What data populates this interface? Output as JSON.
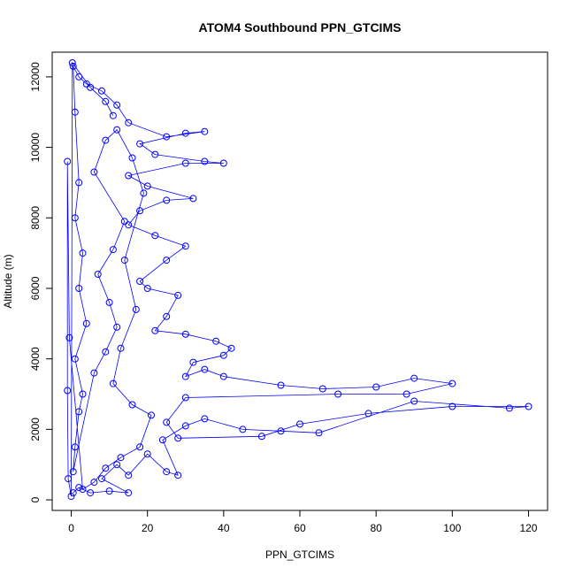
{
  "chart_data": {
    "type": "scatter",
    "title": "ATOM4 Southbound PPN_GTCIMS",
    "xlabel": "PPN_GTCIMS",
    "ylabel": "Altitude (m)",
    "xlim": [
      -5,
      125
    ],
    "ylim": [
      -300,
      12700
    ],
    "x_ticks": [
      0,
      20,
      40,
      60,
      80,
      100,
      120
    ],
    "y_ticks": [
      0,
      2000,
      4000,
      6000,
      8000,
      10000,
      12000
    ],
    "grid": false,
    "legend": "none",
    "point_style": "open-circle-with-connecting-lines",
    "series": [
      {
        "color": "#0000ff",
        "points": [
          [
            0.5,
            200
          ],
          [
            2,
            350
          ],
          [
            5,
            200
          ],
          [
            10,
            250
          ],
          [
            15,
            200
          ],
          [
            8,
            600
          ],
          [
            12,
            1000
          ],
          [
            15,
            700
          ],
          [
            20,
            1300
          ],
          [
            25,
            800
          ],
          [
            28,
            700
          ],
          [
            24,
            1700
          ],
          [
            30,
            2100
          ],
          [
            35,
            2300
          ],
          [
            45,
            2000
          ],
          [
            55,
            1950
          ],
          [
            65,
            1900
          ],
          [
            90,
            2800
          ],
          [
            115,
            2600
          ],
          [
            120,
            2650
          ],
          [
            100,
            2650
          ],
          [
            78,
            2450
          ],
          [
            60,
            2150
          ],
          [
            50,
            1800
          ],
          [
            28,
            1750
          ],
          [
            25,
            2200
          ],
          [
            30,
            2900
          ],
          [
            70,
            3000
          ],
          [
            88,
            3000
          ],
          [
            100,
            3300
          ],
          [
            90,
            3450
          ],
          [
            80,
            3200
          ],
          [
            66,
            3150
          ],
          [
            55,
            3250
          ],
          [
            40,
            3500
          ],
          [
            35,
            3700
          ],
          [
            30,
            3500
          ],
          [
            32,
            3900
          ],
          [
            40,
            4100
          ],
          [
            42,
            4300
          ],
          [
            38,
            4500
          ],
          [
            30,
            4700
          ],
          [
            22,
            4800
          ],
          [
            25,
            5200
          ],
          [
            28,
            5800
          ],
          [
            20,
            6000
          ],
          [
            18,
            6200
          ],
          [
            25,
            6800
          ],
          [
            30,
            7200
          ],
          [
            22,
            7500
          ],
          [
            15,
            7800
          ],
          [
            18,
            8200
          ],
          [
            25,
            8500
          ],
          [
            32,
            8550
          ],
          [
            20,
            8900
          ],
          [
            15,
            9200
          ],
          [
            30,
            9550
          ],
          [
            40,
            9550
          ],
          [
            35,
            9600
          ],
          [
            22,
            9800
          ],
          [
            18,
            10100
          ],
          [
            30,
            10400
          ],
          [
            35,
            10450
          ],
          [
            25,
            10300
          ],
          [
            15,
            10700
          ],
          [
            12,
            11200
          ],
          [
            8,
            11600
          ],
          [
            4,
            11800
          ],
          [
            2,
            12000
          ],
          [
            0.5,
            12300
          ],
          [
            1,
            11000
          ],
          [
            2,
            9000
          ],
          [
            1,
            8000
          ],
          [
            3,
            7000
          ],
          [
            2,
            6000
          ],
          [
            4,
            5000
          ],
          [
            1,
            4000
          ],
          [
            3,
            3000
          ],
          [
            2,
            2500
          ],
          [
            1,
            1500
          ],
          [
            0.5,
            800
          ],
          [
            6,
            3600
          ],
          [
            9,
            4200
          ],
          [
            12,
            4900
          ],
          [
            10,
            5600
          ],
          [
            7,
            6400
          ],
          [
            11,
            7100
          ],
          [
            14,
            7900
          ],
          [
            6,
            9300
          ],
          [
            9,
            10200
          ],
          [
            12,
            10500
          ],
          [
            16,
            9700
          ],
          [
            19,
            8700
          ],
          [
            14,
            6800
          ],
          [
            17,
            5400
          ],
          [
            13,
            4300
          ],
          [
            11,
            3300
          ],
          [
            16,
            2700
          ],
          [
            21,
            2400
          ],
          [
            18,
            1500
          ],
          [
            13,
            1200
          ],
          [
            9,
            900
          ],
          [
            6,
            500
          ],
          [
            3,
            300
          ],
          [
            -0.5,
            4600
          ],
          [
            -1,
            9600
          ],
          [
            -1,
            3100
          ],
          [
            -0.8,
            600
          ],
          [
            0,
            100
          ],
          [
            0.3,
            12400
          ],
          [
            5,
            11700
          ],
          [
            9,
            11300
          ],
          [
            11,
            10900
          ]
        ]
      }
    ]
  }
}
